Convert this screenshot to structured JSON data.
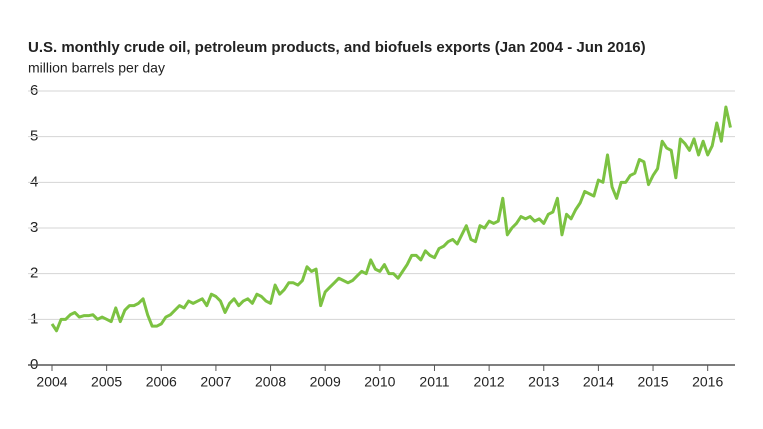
{
  "chart_data": {
    "type": "line",
    "title": "U.S. monthly crude oil, petroleum products, and biofuels exports (Jan 2004 - Jun 2016)",
    "subtitle": "million barrels per day",
    "x": [
      2004.0,
      2004.083,
      2004.167,
      2004.25,
      2004.333,
      2004.417,
      2004.5,
      2004.583,
      2004.667,
      2004.75,
      2004.833,
      2004.917,
      2005.0,
      2005.083,
      2005.167,
      2005.25,
      2005.333,
      2005.417,
      2005.5,
      2005.583,
      2005.667,
      2005.75,
      2005.833,
      2005.917,
      2006.0,
      2006.083,
      2006.167,
      2006.25,
      2006.333,
      2006.417,
      2006.5,
      2006.583,
      2006.667,
      2006.75,
      2006.833,
      2006.917,
      2007.0,
      2007.083,
      2007.167,
      2007.25,
      2007.333,
      2007.417,
      2007.5,
      2007.583,
      2007.667,
      2007.75,
      2007.833,
      2007.917,
      2008.0,
      2008.083,
      2008.167,
      2008.25,
      2008.333,
      2008.417,
      2008.5,
      2008.583,
      2008.667,
      2008.75,
      2008.833,
      2008.917,
      2009.0,
      2009.083,
      2009.167,
      2009.25,
      2009.333,
      2009.417,
      2009.5,
      2009.583,
      2009.667,
      2009.75,
      2009.833,
      2009.917,
      2010.0,
      2010.083,
      2010.167,
      2010.25,
      2010.333,
      2010.417,
      2010.5,
      2010.583,
      2010.667,
      2010.75,
      2010.833,
      2010.917,
      2011.0,
      2011.083,
      2011.167,
      2011.25,
      2011.333,
      2011.417,
      2011.5,
      2011.583,
      2011.667,
      2011.75,
      2011.833,
      2011.917,
      2012.0,
      2012.083,
      2012.167,
      2012.25,
      2012.333,
      2012.417,
      2012.5,
      2012.583,
      2012.667,
      2012.75,
      2012.833,
      2012.917,
      2013.0,
      2013.083,
      2013.167,
      2013.25,
      2013.333,
      2013.417,
      2013.5,
      2013.583,
      2013.667,
      2013.75,
      2013.833,
      2013.917,
      2014.0,
      2014.083,
      2014.167,
      2014.25,
      2014.333,
      2014.417,
      2014.5,
      2014.583,
      2014.667,
      2014.75,
      2014.833,
      2014.917,
      2015.0,
      2015.083,
      2015.167,
      2015.25,
      2015.333,
      2015.417,
      2015.5,
      2015.583,
      2015.667,
      2015.75,
      2015.833,
      2015.917,
      2016.0,
      2016.083,
      2016.167,
      2016.25,
      2016.333,
      2016.417
    ],
    "values": [
      0.9,
      0.75,
      1.0,
      1.0,
      1.1,
      1.15,
      1.05,
      1.08,
      1.08,
      1.1,
      1.0,
      1.05,
      1.0,
      0.95,
      1.25,
      0.95,
      1.2,
      1.3,
      1.3,
      1.35,
      1.45,
      1.1,
      0.85,
      0.85,
      0.9,
      1.05,
      1.1,
      1.2,
      1.3,
      1.25,
      1.4,
      1.35,
      1.4,
      1.45,
      1.3,
      1.55,
      1.5,
      1.4,
      1.15,
      1.35,
      1.45,
      1.3,
      1.4,
      1.45,
      1.35,
      1.55,
      1.5,
      1.4,
      1.35,
      1.75,
      1.55,
      1.65,
      1.8,
      1.8,
      1.75,
      1.85,
      2.15,
      2.05,
      2.1,
      1.3,
      1.6,
      1.7,
      1.8,
      1.9,
      1.85,
      1.8,
      1.85,
      1.95,
      2.05,
      2.0,
      2.3,
      2.1,
      2.05,
      2.2,
      2.0,
      2.0,
      1.9,
      2.05,
      2.2,
      2.4,
      2.4,
      2.3,
      2.5,
      2.4,
      2.35,
      2.55,
      2.6,
      2.7,
      2.75,
      2.65,
      2.85,
      3.05,
      2.75,
      2.7,
      3.05,
      3.0,
      3.15,
      3.1,
      3.15,
      3.65,
      2.85,
      3.0,
      3.1,
      3.25,
      3.2,
      3.25,
      3.15,
      3.2,
      3.1,
      3.3,
      3.35,
      3.65,
      2.85,
      3.3,
      3.2,
      3.4,
      3.55,
      3.8,
      3.75,
      3.7,
      4.05,
      4.0,
      4.6,
      3.9,
      3.65,
      4.0,
      4.0,
      4.15,
      4.2,
      4.5,
      4.45,
      3.95,
      4.15,
      4.3,
      4.9,
      4.75,
      4.7,
      4.1,
      4.95,
      4.85,
      4.7,
      4.95,
      4.6,
      4.9,
      4.6,
      4.8,
      5.3,
      4.9,
      5.65,
      5.2
    ],
    "color": "#7cc242",
    "xlim": [
      2004,
      2016.5
    ],
    "xticks": [
      2004,
      2005,
      2006,
      2007,
      2008,
      2009,
      2010,
      2011,
      2012,
      2013,
      2014,
      2015,
      2016
    ],
    "ylim": [
      0,
      6
    ],
    "yticks": [
      0,
      1,
      2,
      3,
      4,
      5,
      6
    ],
    "grid": true
  }
}
